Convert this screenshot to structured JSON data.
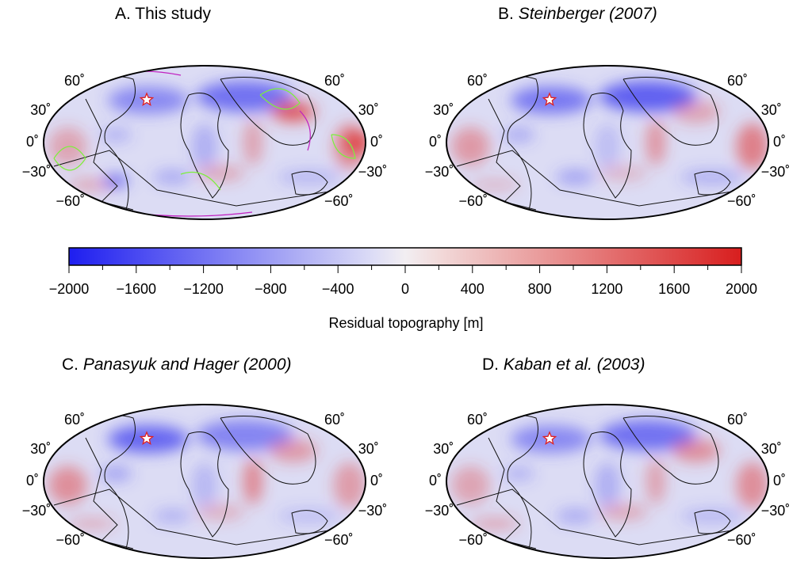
{
  "panels": [
    {
      "id": "A",
      "prefix": "A. ",
      "title": "This study",
      "italic": false,
      "contours": true
    },
    {
      "id": "B",
      "prefix": "B. ",
      "title": "Steinberger (2007)",
      "italic": true,
      "contours": false
    },
    {
      "id": "C",
      "prefix": "C. ",
      "title": "Panasyuk and Hager (2000)",
      "italic": true,
      "contours": false
    },
    {
      "id": "D",
      "prefix": "D. ",
      "title": "Kaban et al. (2003)",
      "italic": true,
      "contours": false
    }
  ],
  "latitude_labels": [
    "60˚",
    "30˚",
    "0˚",
    "−30˚",
    "−60˚"
  ],
  "colorbar": {
    "title": "Residual topography [m]",
    "min": -2000,
    "max": 2000,
    "tick_labels": [
      "−2000",
      "−1600",
      "−1200",
      "−800",
      "−400",
      "0",
      "400",
      "800",
      "1200",
      "1600",
      "2000"
    ],
    "colors": {
      "low": "#1e1ef0",
      "mid": "#eeeef8",
      "high": "#d81e1e"
    }
  },
  "marker": {
    "icon": "star-icon",
    "color": "#e02020"
  },
  "projection": "Mollweide"
}
